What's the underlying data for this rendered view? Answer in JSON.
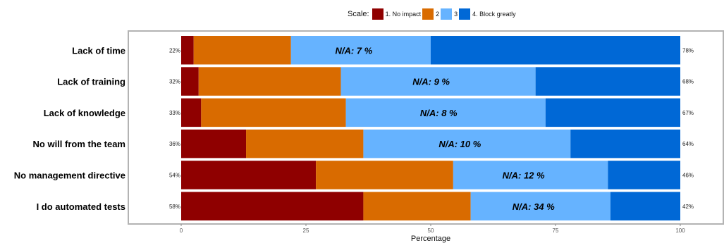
{
  "colors": {
    "no_impact": "#8f0000",
    "level2": "#d96b00",
    "level3": "#66b3ff",
    "block_greatly": "#0068d6",
    "frame": "#b3b3b3",
    "bar_gap": "#ffffff"
  },
  "legend": {
    "title": "Scale:",
    "items": [
      "1. No impact",
      "2",
      "3",
      "4. Block greatly"
    ]
  },
  "chart_data": {
    "type": "bar",
    "orientation": "horizontal",
    "stacked": true,
    "xlabel": "Percentage",
    "xlim": [
      0,
      100
    ],
    "x_ticks": [
      0,
      25,
      50,
      75,
      100
    ],
    "legend_position": "top",
    "categories": [
      "Lack of time",
      "Lack of training",
      "Lack of knowledge",
      "No will from the team",
      "No management directive",
      "I do automated tests"
    ],
    "series": [
      {
        "name": "1. No impact",
        "values": [
          2.5,
          3.5,
          4,
          13,
          27,
          36.5
        ]
      },
      {
        "name": "2",
        "values": [
          19.5,
          28.5,
          29,
          23.5,
          27.5,
          21.5
        ]
      },
      {
        "name": "3",
        "values": [
          28,
          39,
          40,
          41.5,
          31,
          28
        ]
      },
      {
        "name": "4. Block greatly",
        "values": [
          50,
          29,
          27,
          22,
          14.5,
          14
        ]
      }
    ],
    "left_labels": [
      "22%",
      "32%",
      "33%",
      "36%",
      "54%",
      "58%"
    ],
    "right_labels": [
      "78%",
      "68%",
      "67%",
      "64%",
      "46%",
      "42%"
    ],
    "na_labels": [
      "N/A: 7 %",
      "N/A: 9 %",
      "N/A: 8 %",
      "N/A: 10 %",
      "N/A: 12 %",
      "N/A: 34 %"
    ]
  }
}
